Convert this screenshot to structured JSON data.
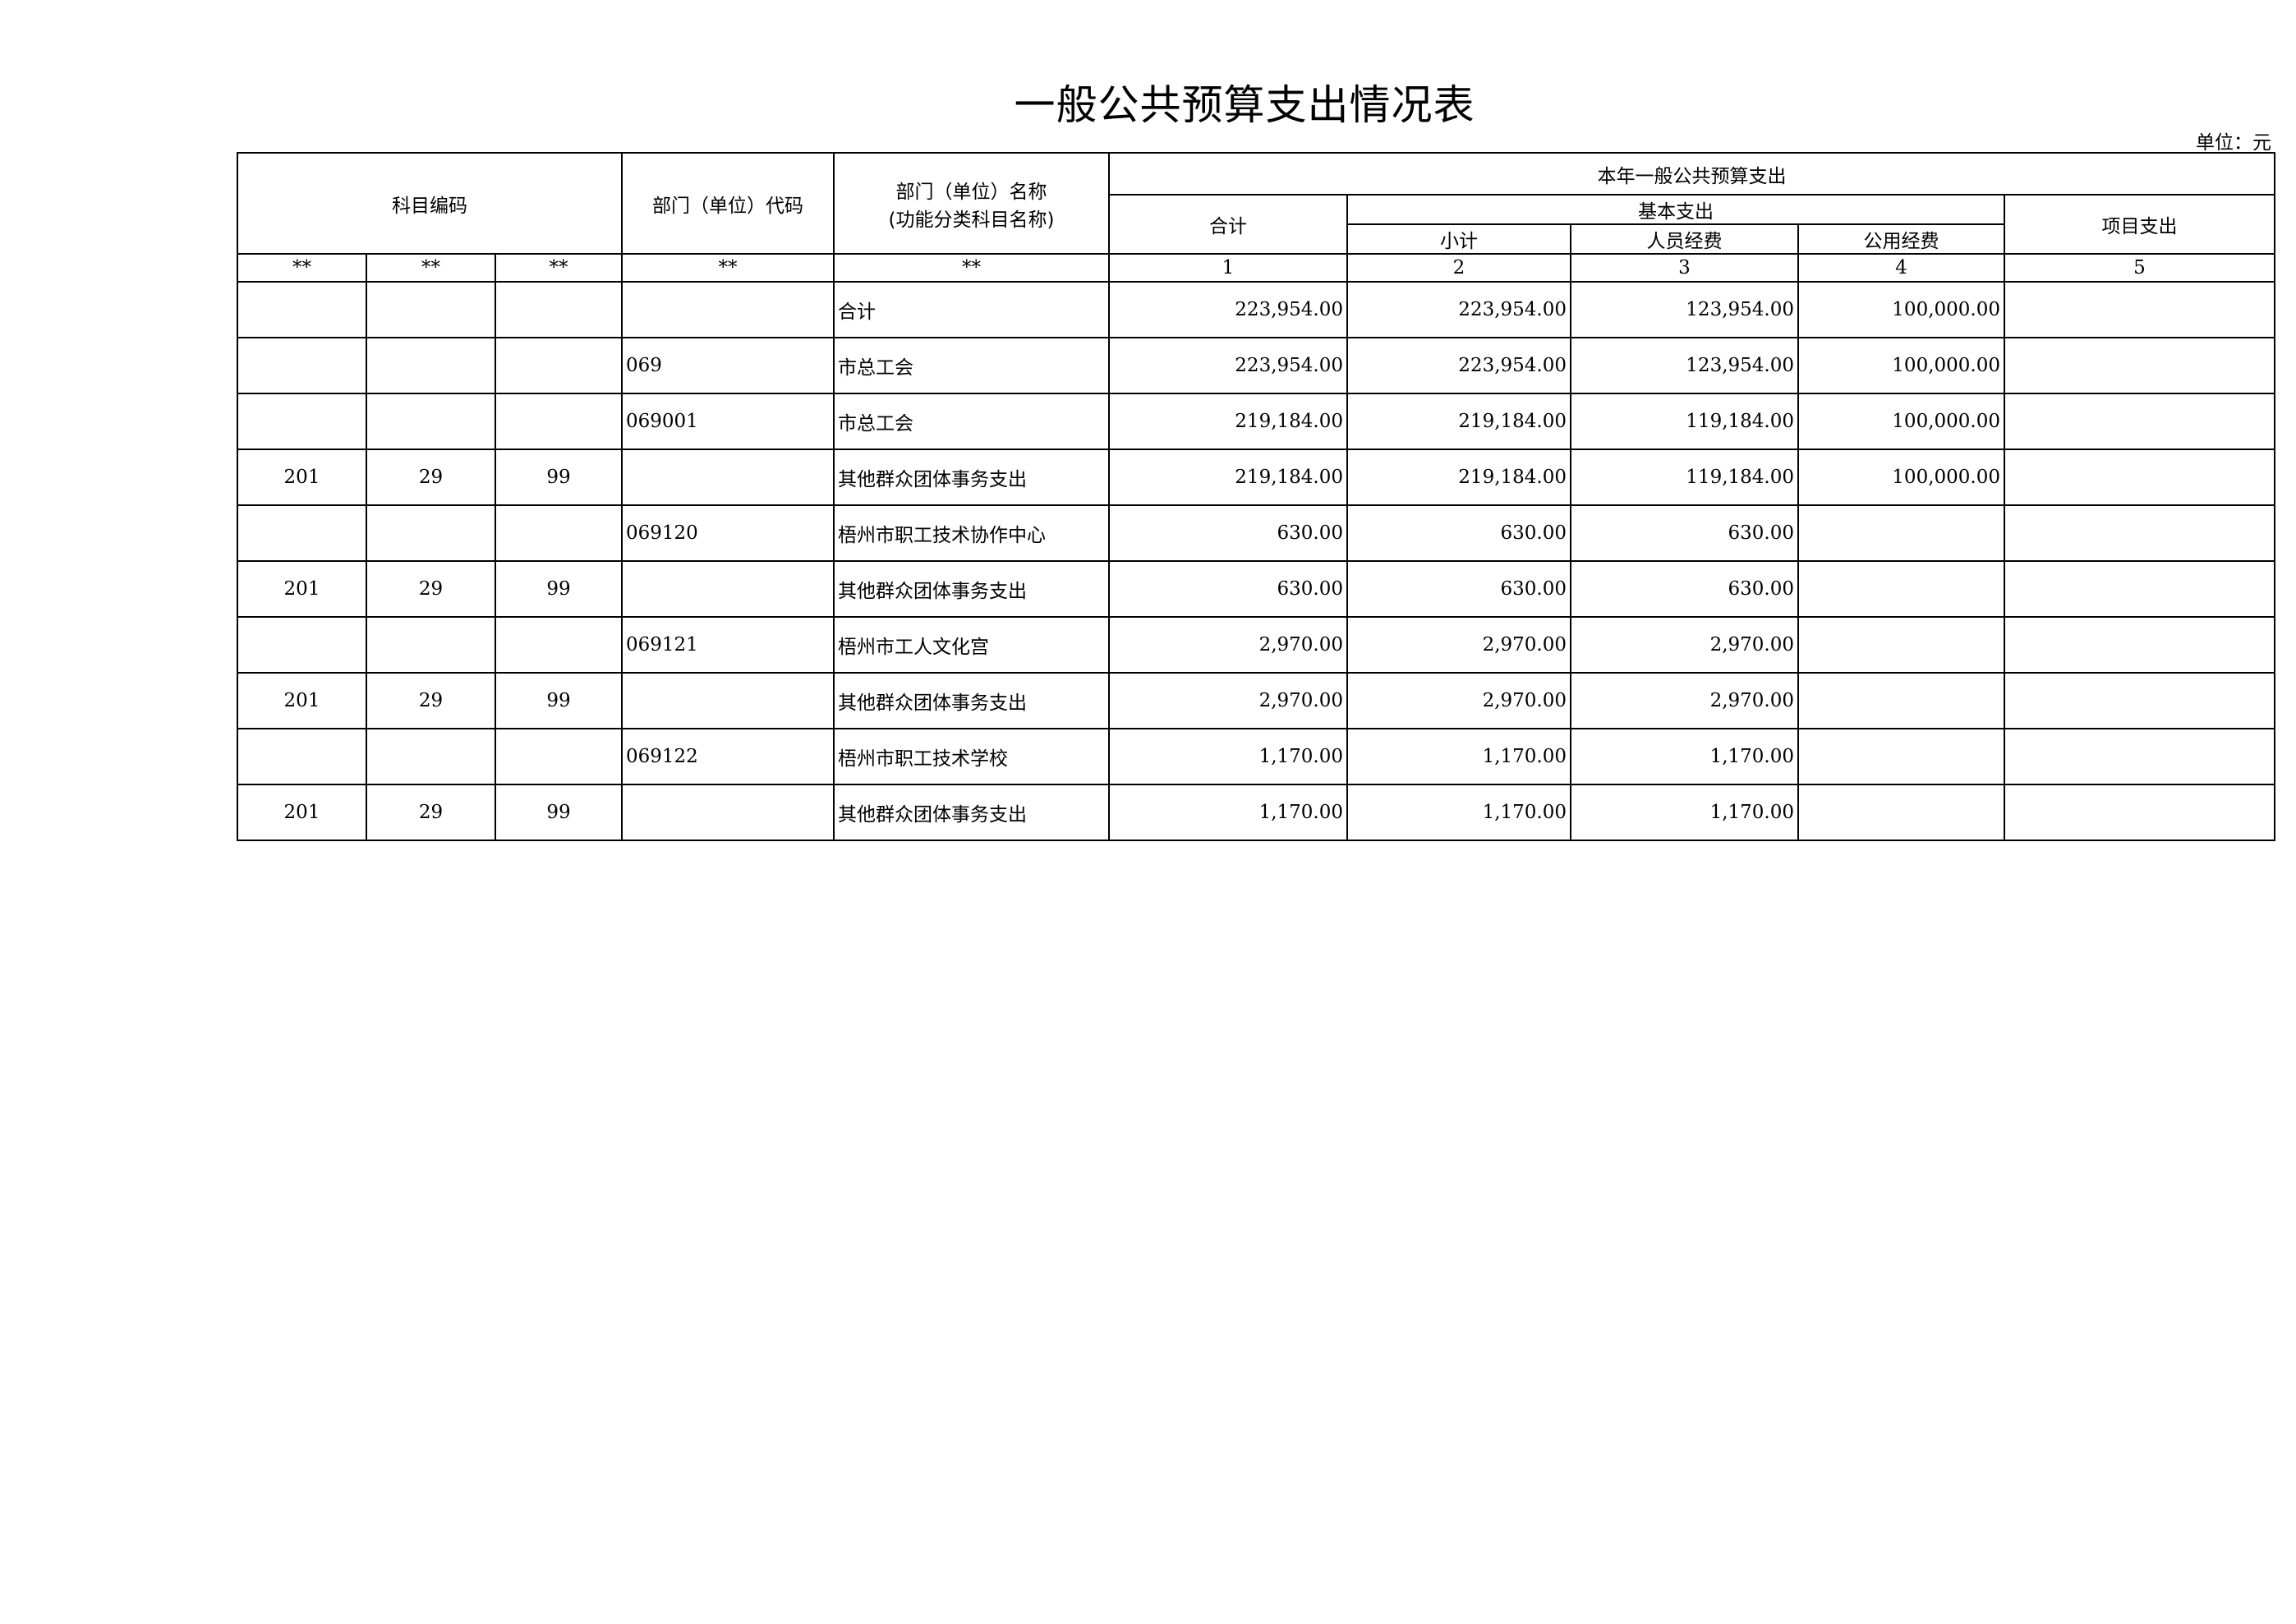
{
  "title": "一般公共预算支出情况表",
  "unit_label": "单位：元",
  "header": {
    "subject_code": "科目编码",
    "dept_code": "部门（单位）代码",
    "dept_name_line1": "部门（单位）名称",
    "dept_name_line2": "(功能分类科目名称)",
    "group": "本年一般公共预算支出",
    "total": "合计",
    "basic": "基本支出",
    "subtotal": "小计",
    "personnel": "人员经费",
    "public": "公用经费",
    "project": "项目支出",
    "index_row": [
      "**",
      "**",
      "**",
      "**",
      "**",
      "1",
      "2",
      "3",
      "4",
      "5"
    ]
  },
  "rows": [
    [
      "",
      "",
      "",
      "",
      "合计",
      "223,954.00",
      "223,954.00",
      "123,954.00",
      "100,000.00",
      ""
    ],
    [
      "",
      "",
      "",
      "069",
      "市总工会",
      "223,954.00",
      "223,954.00",
      "123,954.00",
      "100,000.00",
      ""
    ],
    [
      "",
      "",
      "",
      "069001",
      "市总工会",
      "219,184.00",
      "219,184.00",
      "119,184.00",
      "100,000.00",
      ""
    ],
    [
      "201",
      "29",
      "99",
      "",
      "其他群众团体事务支出",
      "219,184.00",
      "219,184.00",
      "119,184.00",
      "100,000.00",
      ""
    ],
    [
      "",
      "",
      "",
      "069120",
      "梧州市职工技术协作中心",
      "630.00",
      "630.00",
      "630.00",
      "",
      ""
    ],
    [
      "201",
      "29",
      "99",
      "",
      "其他群众团体事务支出",
      "630.00",
      "630.00",
      "630.00",
      "",
      ""
    ],
    [
      "",
      "",
      "",
      "069121",
      "梧州市工人文化宫",
      "2,970.00",
      "2,970.00",
      "2,970.00",
      "",
      ""
    ],
    [
      "201",
      "29",
      "99",
      "",
      "其他群众团体事务支出",
      "2,970.00",
      "2,970.00",
      "2,970.00",
      "",
      ""
    ],
    [
      "",
      "",
      "",
      "069122",
      "梧州市职工技术学校",
      "1,170.00",
      "1,170.00",
      "1,170.00",
      "",
      ""
    ],
    [
      "201",
      "29",
      "99",
      "",
      "其他群众团体事务支出",
      "1,170.00",
      "1,170.00",
      "1,170.00",
      "",
      ""
    ]
  ]
}
